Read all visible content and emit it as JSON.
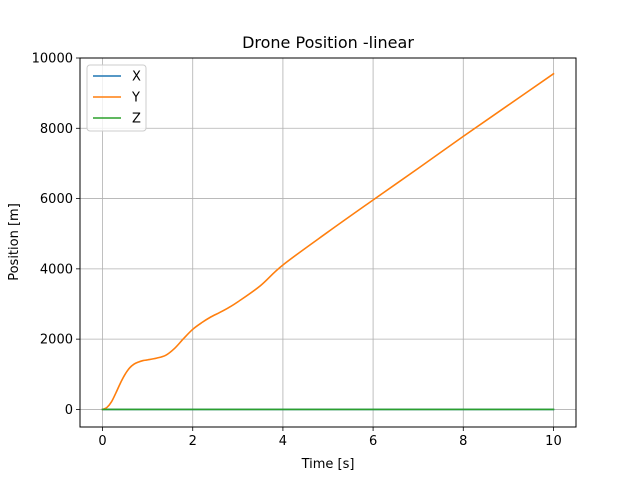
{
  "chart_data": {
    "type": "line",
    "title": "Drone Position -linear",
    "xlabel": "Time [s]",
    "ylabel": "Position [m]",
    "xlim": [
      -0.5,
      10.5
    ],
    "ylim": [
      -500,
      10000
    ],
    "xticks": [
      0,
      2,
      4,
      6,
      8,
      10
    ],
    "yticks": [
      0,
      2000,
      4000,
      6000,
      8000,
      10000
    ],
    "grid": true,
    "legend_position": "top-left",
    "x": [
      0,
      0.1,
      0.2,
      0.3,
      0.4,
      0.5,
      0.6,
      0.7,
      0.8,
      0.9,
      1.0,
      1.2,
      1.4,
      1.6,
      1.8,
      2.0,
      2.2,
      2.4,
      2.6,
      2.8,
      3.0,
      3.5,
      4.0,
      5.0,
      6.0,
      7.0,
      8.0,
      9.0,
      10.0
    ],
    "series": [
      {
        "name": "X",
        "color": "#1f77b4",
        "values": [
          0,
          0,
          0,
          0,
          0,
          0,
          0,
          0,
          0,
          0,
          0,
          0,
          0,
          0,
          0,
          0,
          0,
          0,
          0,
          0,
          0,
          0,
          0,
          0,
          0,
          0,
          0,
          0,
          0
        ]
      },
      {
        "name": "Y",
        "color": "#ff7f0e",
        "values": [
          0,
          60,
          220,
          480,
          760,
          1000,
          1180,
          1290,
          1350,
          1390,
          1410,
          1460,
          1540,
          1740,
          2020,
          2280,
          2470,
          2630,
          2760,
          2900,
          3060,
          3520,
          4110,
          5050,
          5960,
          6860,
          7770,
          8660,
          9550
        ]
      },
      {
        "name": "Z",
        "color": "#2ca02c",
        "values": [
          0,
          0,
          0,
          0,
          0,
          0,
          0,
          0,
          0,
          0,
          0,
          0,
          0,
          0,
          0,
          0,
          0,
          0,
          0,
          0,
          0,
          0,
          0,
          0,
          0,
          0,
          0,
          0,
          0
        ]
      }
    ]
  }
}
